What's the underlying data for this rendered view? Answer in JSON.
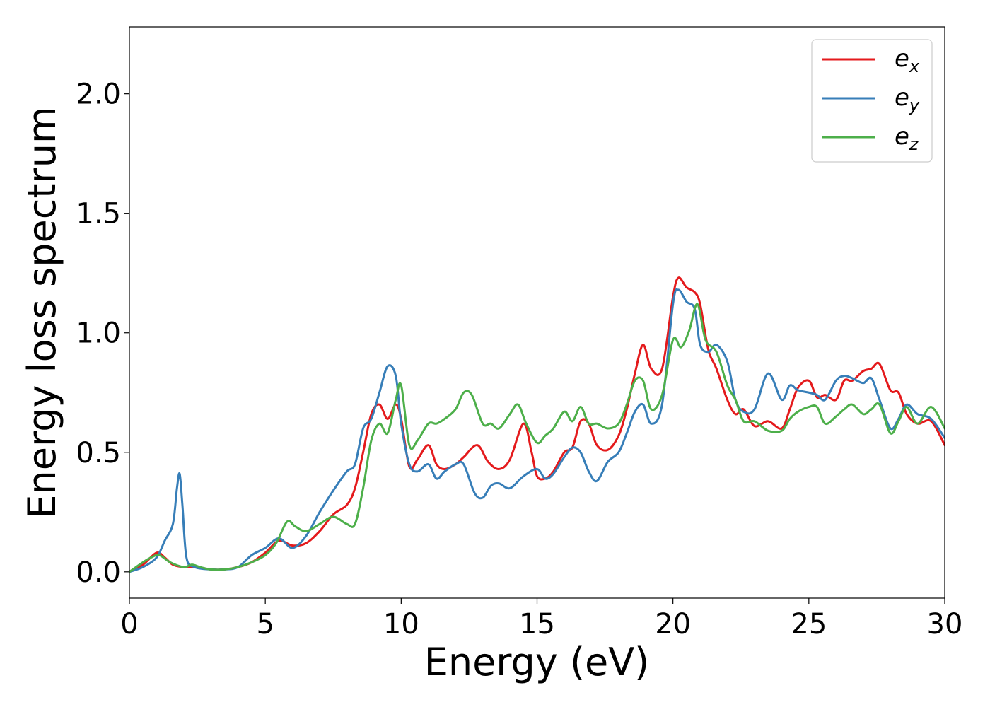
{
  "chart_data": {
    "type": "line",
    "title": "",
    "xlabel": "Energy (eV)",
    "ylabel": "Energy loss spectrum",
    "xlim": [
      0,
      30
    ],
    "ylim": [
      -0.11,
      2.28
    ],
    "xticks": [
      0,
      5,
      10,
      15,
      20,
      25,
      30
    ],
    "xtick_labels": [
      "0",
      "5",
      "10",
      "15",
      "20",
      "25",
      "30"
    ],
    "yticks": [
      0.0,
      0.5,
      1.0,
      1.5,
      2.0
    ],
    "ytick_labels": [
      "0.0",
      "0.5",
      "1.0",
      "1.5",
      "2.0"
    ],
    "grid": false,
    "legend_position": "top-right",
    "series": [
      {
        "name": "ex",
        "legend_base": "e",
        "legend_sub": "x",
        "color": "#e41a1c",
        "x": [
          0,
          0.5,
          1.0,
          1.3,
          1.6,
          2.0,
          2.5,
          3.0,
          3.5,
          4.0,
          4.5,
          5.0,
          5.5,
          6.0,
          6.5,
          7.0,
          7.5,
          8.0,
          8.3,
          8.6,
          8.9,
          9.2,
          9.5,
          9.8,
          10.0,
          10.3,
          10.6,
          11.0,
          11.3,
          11.6,
          12.0,
          12.3,
          12.8,
          13.2,
          13.6,
          14.0,
          14.5,
          14.8,
          15.0,
          15.3,
          15.6,
          16.0,
          16.3,
          16.6,
          16.9,
          17.2,
          17.6,
          18.0,
          18.3,
          18.6,
          18.9,
          19.2,
          19.6,
          20.0,
          20.2,
          20.5,
          20.8,
          21.0,
          21.3,
          21.6,
          22.0,
          22.3,
          22.6,
          23.0,
          23.5,
          24.0,
          24.3,
          24.6,
          25.0,
          25.3,
          25.6,
          26.0,
          26.3,
          26.6,
          27.0,
          27.3,
          27.6,
          28.0,
          28.3,
          28.6,
          29.0,
          29.5,
          30.0
        ],
        "y": [
          0.0,
          0.03,
          0.08,
          0.06,
          0.03,
          0.02,
          0.02,
          0.01,
          0.01,
          0.02,
          0.04,
          0.08,
          0.13,
          0.11,
          0.12,
          0.17,
          0.24,
          0.28,
          0.35,
          0.5,
          0.66,
          0.7,
          0.64,
          0.7,
          0.64,
          0.44,
          0.47,
          0.53,
          0.45,
          0.43,
          0.45,
          0.48,
          0.53,
          0.46,
          0.43,
          0.47,
          0.62,
          0.5,
          0.4,
          0.39,
          0.42,
          0.5,
          0.52,
          0.63,
          0.62,
          0.53,
          0.51,
          0.57,
          0.68,
          0.83,
          0.95,
          0.85,
          0.85,
          1.15,
          1.23,
          1.19,
          1.17,
          1.12,
          0.93,
          0.85,
          0.72,
          0.66,
          0.68,
          0.61,
          0.63,
          0.6,
          0.68,
          0.77,
          0.8,
          0.73,
          0.74,
          0.72,
          0.8,
          0.8,
          0.84,
          0.85,
          0.87,
          0.76,
          0.75,
          0.66,
          0.62,
          0.63,
          0.53
        ]
      },
      {
        "name": "ey",
        "legend_base": "e",
        "legend_sub": "y",
        "color": "#377eb8",
        "x": [
          0,
          0.5,
          1.0,
          1.3,
          1.6,
          1.75,
          1.85,
          1.95,
          2.1,
          2.4,
          3.0,
          3.5,
          4.0,
          4.5,
          5.0,
          5.5,
          6.0,
          6.5,
          7.0,
          7.5,
          8.0,
          8.3,
          8.6,
          8.9,
          9.2,
          9.5,
          9.8,
          10.0,
          10.3,
          10.6,
          11.0,
          11.3,
          11.6,
          12.0,
          12.3,
          12.7,
          13.0,
          13.3,
          13.6,
          14.0,
          14.5,
          15.0,
          15.3,
          15.6,
          16.0,
          16.3,
          16.6,
          16.9,
          17.2,
          17.6,
          18.0,
          18.3,
          18.6,
          18.9,
          19.2,
          19.6,
          20.0,
          20.2,
          20.5,
          20.8,
          21.0,
          21.3,
          21.6,
          22.0,
          22.3,
          22.6,
          23.0,
          23.5,
          24.0,
          24.3,
          24.6,
          25.0,
          25.3,
          25.6,
          26.0,
          26.3,
          26.6,
          27.0,
          27.3,
          27.6,
          28.0,
          28.3,
          28.6,
          29.0,
          29.5,
          30.0
        ],
        "y": [
          0.0,
          0.02,
          0.06,
          0.13,
          0.2,
          0.35,
          0.41,
          0.28,
          0.06,
          0.02,
          0.01,
          0.01,
          0.02,
          0.07,
          0.1,
          0.14,
          0.1,
          0.15,
          0.25,
          0.34,
          0.42,
          0.45,
          0.6,
          0.64,
          0.75,
          0.86,
          0.82,
          0.62,
          0.45,
          0.42,
          0.45,
          0.39,
          0.42,
          0.45,
          0.45,
          0.33,
          0.31,
          0.36,
          0.37,
          0.35,
          0.4,
          0.43,
          0.39,
          0.41,
          0.48,
          0.52,
          0.5,
          0.42,
          0.38,
          0.46,
          0.5,
          0.58,
          0.67,
          0.7,
          0.62,
          0.7,
          1.12,
          1.18,
          1.13,
          1.1,
          0.95,
          0.92,
          0.95,
          0.88,
          0.72,
          0.67,
          0.68,
          0.83,
          0.72,
          0.78,
          0.76,
          0.75,
          0.74,
          0.72,
          0.8,
          0.82,
          0.81,
          0.79,
          0.81,
          0.72,
          0.6,
          0.64,
          0.7,
          0.66,
          0.64,
          0.56
        ]
      },
      {
        "name": "ez",
        "legend_base": "e",
        "legend_sub": "z",
        "color": "#4daf4a",
        "x": [
          0,
          0.5,
          0.8,
          1.1,
          1.5,
          2.0,
          2.3,
          2.6,
          3.0,
          3.5,
          4.0,
          4.5,
          5.0,
          5.4,
          5.8,
          6.1,
          6.5,
          7.0,
          7.5,
          8.0,
          8.3,
          8.6,
          8.9,
          9.2,
          9.5,
          9.8,
          10.0,
          10.3,
          10.6,
          11.0,
          11.3,
          11.6,
          12.0,
          12.3,
          12.6,
          13.0,
          13.3,
          13.6,
          14.0,
          14.3,
          14.6,
          15.0,
          15.3,
          15.6,
          16.0,
          16.3,
          16.6,
          16.9,
          17.2,
          17.6,
          18.0,
          18.3,
          18.6,
          18.9,
          19.2,
          19.6,
          20.0,
          20.3,
          20.6,
          20.9,
          21.2,
          21.6,
          22.0,
          22.3,
          22.6,
          23.0,
          23.5,
          24.0,
          24.3,
          24.6,
          25.0,
          25.3,
          25.6,
          26.0,
          26.3,
          26.6,
          27.0,
          27.3,
          27.6,
          28.0,
          28.3,
          28.6,
          29.0,
          29.5,
          30.0
        ],
        "y": [
          0.0,
          0.04,
          0.06,
          0.07,
          0.04,
          0.02,
          0.03,
          0.02,
          0.01,
          0.01,
          0.02,
          0.04,
          0.07,
          0.12,
          0.21,
          0.19,
          0.17,
          0.2,
          0.23,
          0.2,
          0.2,
          0.35,
          0.55,
          0.62,
          0.58,
          0.72,
          0.78,
          0.53,
          0.55,
          0.62,
          0.62,
          0.64,
          0.68,
          0.75,
          0.74,
          0.62,
          0.62,
          0.6,
          0.66,
          0.7,
          0.62,
          0.54,
          0.57,
          0.6,
          0.67,
          0.63,
          0.69,
          0.62,
          0.62,
          0.6,
          0.62,
          0.7,
          0.8,
          0.8,
          0.68,
          0.74,
          0.97,
          0.94,
          1.01,
          1.12,
          0.97,
          0.92,
          0.78,
          0.72,
          0.63,
          0.63,
          0.59,
          0.59,
          0.64,
          0.67,
          0.69,
          0.69,
          0.62,
          0.65,
          0.68,
          0.7,
          0.66,
          0.68,
          0.7,
          0.58,
          0.63,
          0.69,
          0.62,
          0.69,
          0.6
        ]
      }
    ]
  }
}
